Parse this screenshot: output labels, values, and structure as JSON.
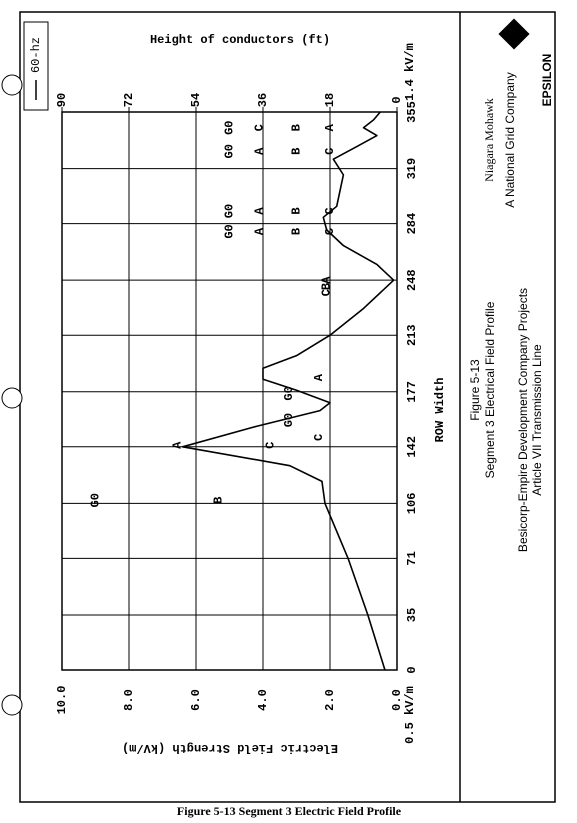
{
  "chart_data": {
    "type": "line",
    "x_label": "ROW Width",
    "y_label": "Electric Field Strength (kV/m)",
    "y2_label": "Height of conductors (ft)",
    "x": [
      0,
      35,
      71,
      106,
      120,
      130,
      142,
      155,
      165,
      170,
      178,
      185,
      192,
      200,
      213,
      230,
      248,
      258,
      270,
      280,
      288,
      295,
      305,
      315,
      325,
      333,
      340,
      345,
      350,
      355
    ],
    "series": [
      {
        "name": "60-hz",
        "color": "#000000",
        "values": [
          0.36,
          0.87,
          1.46,
          2.15,
          2.24,
          3.2,
          6.4,
          4.2,
          2.3,
          2.0,
          3.0,
          4.0,
          4.0,
          3.0,
          2.0,
          1.0,
          0.1,
          0.6,
          1.6,
          2.1,
          2.2,
          1.8,
          1.7,
          1.6,
          1.9,
          1.2,
          0.6,
          1.0,
          0.7,
          0.5
        ]
      }
    ],
    "xlim": [
      0,
      355
    ],
    "xticks": [
      0,
      35,
      71,
      106,
      142,
      177,
      213,
      248,
      284,
      319,
      355
    ],
    "ylim": [
      0,
      10
    ],
    "yticks": [
      {
        "value": 0,
        "label": "0.0"
      },
      {
        "value": 2,
        "label": "2.0"
      },
      {
        "value": 4,
        "label": "4.0"
      },
      {
        "value": 6,
        "label": "6.0"
      },
      {
        "value": 8,
        "label": "8.0"
      },
      {
        "value": 10,
        "label": "10.0"
      }
    ],
    "y2lim": [
      0,
      90
    ],
    "y2ticks": [
      0,
      18,
      36,
      54,
      72,
      90
    ],
    "grid": true,
    "edge_labels": [
      "0.5 kV/m",
      "1.4 kV/m"
    ],
    "conductors": [
      {
        "x": 108,
        "height": 48,
        "label": "B"
      },
      {
        "x": 108,
        "height": 81,
        "label": "G0"
      },
      {
        "x": 143,
        "height": 59,
        "label": "A"
      },
      {
        "x": 143,
        "height": 34,
        "label": "C"
      },
      {
        "x": 148,
        "height": 21,
        "label": "C"
      },
      {
        "x": 159,
        "height": 29,
        "label": "G0"
      },
      {
        "x": 176,
        "height": 29,
        "label": "G0"
      },
      {
        "x": 186,
        "height": 21,
        "label": "A"
      },
      {
        "x": 240,
        "height": 19,
        "label": "C"
      },
      {
        "x": 244,
        "height": 19,
        "label": "B"
      },
      {
        "x": 248,
        "height": 19,
        "label": "A"
      },
      {
        "x": 279,
        "height": 37,
        "label": "A"
      },
      {
        "x": 279,
        "height": 45,
        "label": "G0"
      },
      {
        "x": 279,
        "height": 27,
        "label": "B"
      },
      {
        "x": 279,
        "height": 18,
        "label": "C"
      },
      {
        "x": 292,
        "height": 37,
        "label": "A"
      },
      {
        "x": 292,
        "height": 45,
        "label": "G0"
      },
      {
        "x": 292,
        "height": 27,
        "label": "B"
      },
      {
        "x": 292,
        "height": 18,
        "label": "C"
      },
      {
        "x": 330,
        "height": 37,
        "label": "A"
      },
      {
        "x": 330,
        "height": 45,
        "label": "G0"
      },
      {
        "x": 330,
        "height": 27,
        "label": "B"
      },
      {
        "x": 330,
        "height": 18,
        "label": "C"
      },
      {
        "x": 345,
        "height": 37,
        "label": "C"
      },
      {
        "x": 345,
        "height": 45,
        "label": "G0"
      },
      {
        "x": 345,
        "height": 27,
        "label": "B"
      },
      {
        "x": 345,
        "height": 18,
        "label": "A"
      }
    ]
  },
  "panel": {
    "company": "Niagara Mohawk",
    "subsidiary": "A National Grid Company",
    "consultant": "EPSILON",
    "figure": "Figure 5-13",
    "subtitle": "Segment 3 Electrical Field Profile",
    "project": "Besicorp-Empire Development Company Projects",
    "line": "Article VII Transmission Line"
  },
  "caption": "Figure 5-13 Segment 3 Electric Field Profile"
}
